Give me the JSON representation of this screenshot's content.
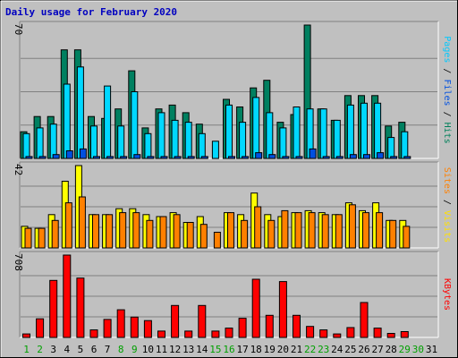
{
  "chart_data": {
    "type": "bar",
    "title": "Daily usage for February 2020",
    "categories": [
      "1",
      "2",
      "3",
      "4",
      "5",
      "6",
      "7",
      "8",
      "9",
      "10",
      "11",
      "12",
      "13",
      "14",
      "15",
      "16",
      "17",
      "18",
      "19",
      "20",
      "21",
      "22",
      "23",
      "24",
      "25",
      "26",
      "27",
      "28",
      "29",
      "30",
      "31"
    ],
    "weekend_days": [
      "1",
      "2",
      "8",
      "9",
      "15",
      "16",
      "22",
      "23",
      "29",
      "30"
    ],
    "panels": [
      {
        "id": "hits-files-pages",
        "ymax_label": "70",
        "ylim": [
          0,
          70
        ],
        "axis_label": {
          "parts": [
            "Pages",
            "Files",
            "Hits"
          ],
          "colors": [
            "#00c8ff",
            "#0050e0",
            "#00805a"
          ]
        },
        "series": [
          {
            "name": "Hits",
            "color": "#008060",
            "values": [
              14,
              22,
              22,
              57,
              57,
              22,
              21,
              26,
              46,
              16,
              26,
              28,
              24,
              18,
              0,
              31,
              27,
              37,
              41,
              19,
              23,
              70,
              26,
              20,
              33,
              33,
              33,
              17,
              19,
              0,
              0
            ]
          },
          {
            "name": "Files",
            "color": "#00d8ff",
            "values": [
              13,
              16,
              18,
              39,
              48,
              17,
              38,
              17,
              35,
              13,
              24,
              20,
              19,
              13,
              9,
              28,
              19,
              32,
              24,
              16,
              27,
              26,
              26,
              20,
              28,
              29,
              29,
              11,
              14,
              0,
              0
            ]
          },
          {
            "name": "Pages",
            "color": "#0050e0",
            "values": [
              1,
              1,
              2,
              4,
              5,
              1,
              1,
              1,
              2,
              1,
              1,
              1,
              1,
              1,
              0,
              1,
              1,
              3,
              2,
              1,
              1,
              5,
              1,
              1,
              2,
              2,
              3,
              1,
              1,
              0,
              0
            ]
          }
        ]
      },
      {
        "id": "visits-sites",
        "ymax_label": "42",
        "ylim": [
          0,
          42
        ],
        "axis_label": {
          "parts": [
            "Sites",
            "Visits"
          ],
          "colors": [
            "#ff8000",
            "#ffe000"
          ]
        },
        "series": [
          {
            "name": "Visits",
            "color": "#ffff00",
            "values": [
              11,
              10,
              17,
              34,
              42,
              17,
              17,
              20,
              20,
              17,
              16,
              18,
              13,
              16,
              0,
              18,
              17,
              28,
              17,
              16,
              18,
              19,
              18,
              17,
              23,
              19,
              23,
              14,
              14,
              0,
              0
            ]
          },
          {
            "name": "Sites",
            "color": "#ff8000",
            "values": [
              10,
              10,
              14,
              23,
              26,
              17,
              17,
              18,
              18,
              14,
              16,
              17,
              13,
              12,
              8,
              18,
              14,
              21,
              14,
              19,
              18,
              18,
              17,
              17,
              22,
              18,
              18,
              14,
              11,
              0,
              0
            ]
          }
        ]
      },
      {
        "id": "kbytes",
        "ymax_label": "708",
        "ylim": [
          0,
          708
        ],
        "axis_label": {
          "parts": [
            "KBytes"
          ],
          "colors": [
            "#ff0000"
          ]
        },
        "series": [
          {
            "name": "KBytes",
            "color": "#ff0000",
            "values": [
              30,
              160,
              490,
              708,
              510,
              65,
              155,
              238,
              175,
              145,
              55,
              275,
              55,
              275,
              55,
              80,
              165,
              500,
              190,
              480,
              190,
              95,
              65,
              30,
              85,
              300,
              80,
              35,
              50,
              0,
              0
            ]
          }
        ]
      }
    ]
  },
  "style": {
    "background": "#c0c0c0",
    "panel_background": "#c0c0c0",
    "gridline": "#808080",
    "title_color": "#0000c0",
    "weekday_color": "#000000",
    "weekend_color": "#00a000"
  }
}
